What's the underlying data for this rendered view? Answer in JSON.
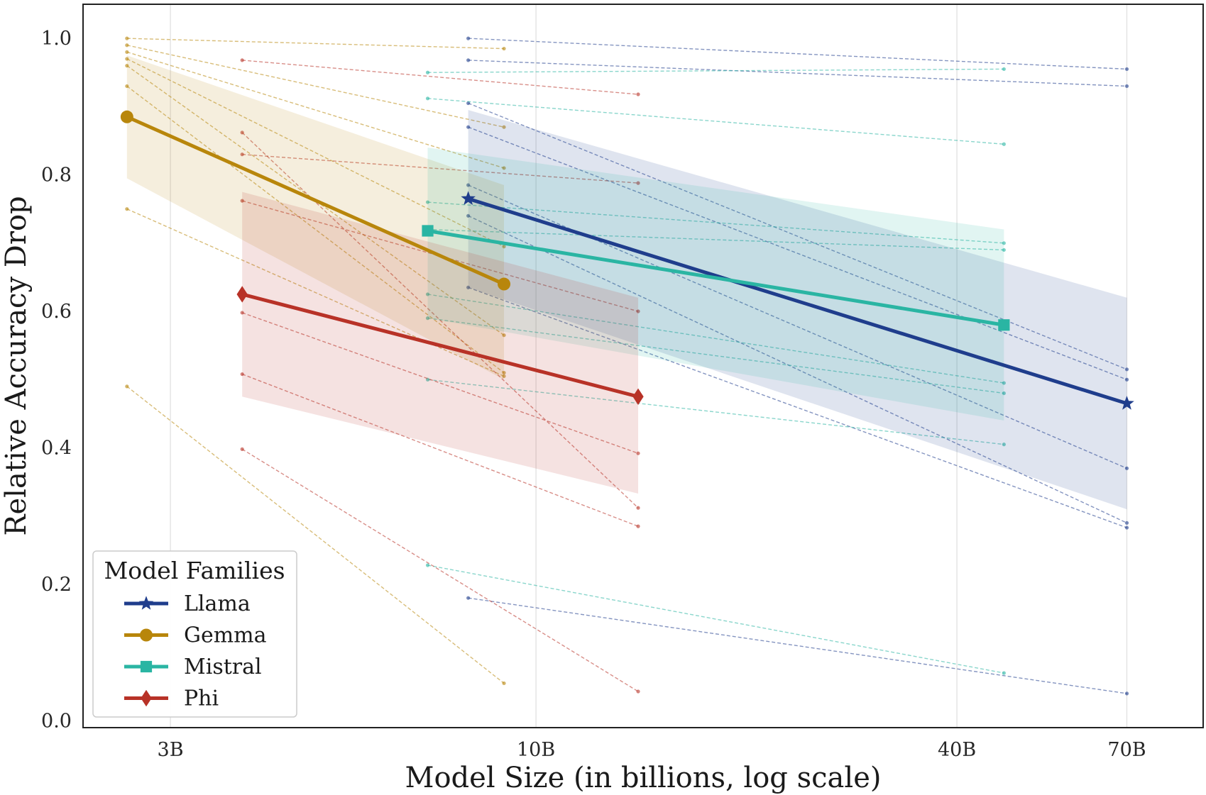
{
  "chart_data": {
    "type": "line",
    "xlabel": "Model Size (in billions, log scale)",
    "ylabel": "Relative Accuracy Drop",
    "x_scale": "log",
    "xlim": [
      2.25,
      90
    ],
    "ylim": [
      -0.01,
      1.05
    ],
    "x_ticks": [
      {
        "value": 3,
        "label": "3B"
      },
      {
        "value": 10,
        "label": "10B"
      },
      {
        "value": 40,
        "label": "40B"
      },
      {
        "value": 70,
        "label": "70B"
      }
    ],
    "y_ticks": [
      {
        "value": 0.0,
        "label": "0.0"
      },
      {
        "value": 0.2,
        "label": "0.2"
      },
      {
        "value": 0.4,
        "label": "0.4"
      },
      {
        "value": 0.6,
        "label": "0.6"
      },
      {
        "value": 0.8,
        "label": "0.8"
      },
      {
        "value": 1.0,
        "label": "1.0"
      }
    ],
    "grid": "vertical",
    "legend": {
      "title": "Model Families",
      "placement": "lower-left"
    },
    "series": [
      {
        "name": "Llama",
        "color": "#1f3d8c",
        "marker": "star",
        "x": [
          8,
          70
        ],
        "mean": [
          0.765,
          0.465
        ],
        "band_low": [
          0.635,
          0.31
        ],
        "band_high": [
          0.895,
          0.62
        ],
        "individual": [
          [
            1.0,
            0.955
          ],
          [
            0.968,
            0.93
          ],
          [
            0.905,
            0.515
          ],
          [
            0.87,
            0.5
          ],
          [
            0.785,
            0.37
          ],
          [
            0.74,
            0.29
          ],
          [
            0.635,
            0.283
          ],
          [
            0.18,
            0.04
          ]
        ]
      },
      {
        "name": "Gemma",
        "color": "#b8860b",
        "marker": "circle",
        "x": [
          2.6,
          9
        ],
        "mean": [
          0.885,
          0.64
        ],
        "band_low": [
          0.795,
          0.5
        ],
        "band_high": [
          0.975,
          0.785
        ],
        "individual": [
          [
            1.0,
            0.985
          ],
          [
            0.99,
            0.87
          ],
          [
            0.98,
            0.81
          ],
          [
            0.97,
            0.695
          ],
          [
            0.96,
            0.565
          ],
          [
            0.93,
            0.51
          ],
          [
            0.75,
            0.505
          ],
          [
            0.49,
            0.055
          ]
        ]
      },
      {
        "name": "Mistral",
        "color": "#2ab5a3",
        "marker": "square",
        "x": [
          7,
          46.7
        ],
        "mean": [
          0.718,
          0.58
        ],
        "band_low": [
          0.59,
          0.44
        ],
        "band_high": [
          0.84,
          0.72
        ],
        "individual": [
          [
            0.95,
            0.955
          ],
          [
            0.912,
            0.845
          ],
          [
            0.76,
            0.7
          ],
          [
            0.72,
            0.69
          ],
          [
            0.625,
            0.495
          ],
          [
            0.59,
            0.48
          ],
          [
            0.5,
            0.405
          ],
          [
            0.228,
            0.07
          ]
        ]
      },
      {
        "name": "Phi",
        "color": "#b83227",
        "marker": "diamond",
        "x": [
          3.8,
          14
        ],
        "mean": [
          0.625,
          0.475
        ],
        "band_low": [
          0.475,
          0.333
        ],
        "band_high": [
          0.775,
          0.62
        ],
        "individual": [
          [
            0.968,
            0.918
          ],
          [
            0.862,
            0.312
          ],
          [
            0.83,
            0.788
          ],
          [
            0.762,
            0.6
          ],
          [
            0.598,
            0.392
          ],
          [
            0.508,
            0.285
          ],
          [
            0.398,
            0.043
          ]
        ]
      }
    ]
  }
}
